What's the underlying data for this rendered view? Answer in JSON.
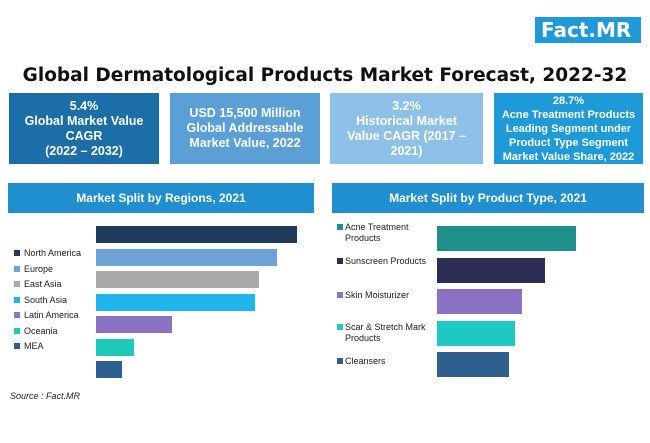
{
  "brand": {
    "logo_main": "Fact",
    "logo_dot": ".",
    "logo_suffix": "MR"
  },
  "title": "Global Dermatological Products Market Forecast, 2022-32",
  "kpis": [
    {
      "lines": [
        "5.4%",
        "Global Market Value",
        "CAGR",
        "(2022 – 2032)"
      ],
      "color": "#1b6ea8"
    },
    {
      "lines": [
        "USD 15,500 Million",
        "Global Addressable",
        "Market Value, 2022"
      ],
      "color": "#5a9fd6"
    },
    {
      "lines": [
        "3.2%",
        "Historical Market",
        "Value CAGR (2017 –",
        "2021)"
      ],
      "color": "#8dc1e8"
    },
    {
      "lines": [
        "28.7%",
        "Acne Treatment Products",
        "Leading Segment under",
        "Product Type Segment",
        "Market Value Share, 2022"
      ],
      "color": "#1f9ad8"
    }
  ],
  "panels": {
    "regions_title": "Market Split by Regions, 2021",
    "product_title": "Market Split by Product Type, 2021"
  },
  "source": "Source : Fact.MR",
  "chart_data": [
    {
      "type": "bar",
      "orientation": "horizontal",
      "title": "Market Split by Regions, 2021",
      "categories": [
        "North America",
        "Europe",
        "East Asia",
        "South Asia",
        "Latin America",
        "Oceania",
        "MEA"
      ],
      "values": [
        100,
        90,
        81,
        79,
        38,
        19,
        13
      ],
      "colors": [
        "#1f3a5a",
        "#6fa3d6",
        "#a9a9a9",
        "#1fb4ec",
        "#8b72c4",
        "#1fc9b8",
        "#2f5f8e"
      ],
      "legend": "left",
      "xlim": [
        0,
        100
      ]
    },
    {
      "type": "bar",
      "orientation": "horizontal",
      "title": "Market Split by Product Type, 2021",
      "categories": [
        "Acne Treatment Products",
        "Sunscreen Products",
        "Skin Moisturizer",
        "Scar & Stretch Mark Products",
        "Cleansers"
      ],
      "legend_labels": [
        [
          "Acne Treatment",
          "Products"
        ],
        [
          "Sunscreen Products"
        ],
        [
          "Skin Moisturizer"
        ],
        [
          "Scar & Stretch Mark",
          "Products"
        ],
        [
          "Cleansers"
        ]
      ],
      "values": [
        100,
        78,
        61,
        56,
        52
      ],
      "colors": [
        "#1f8f8c",
        "#2b2e55",
        "#8b72c4",
        "#1fc9c2",
        "#2f5f8e"
      ],
      "legend": "left",
      "xlim": [
        0,
        100
      ]
    }
  ]
}
